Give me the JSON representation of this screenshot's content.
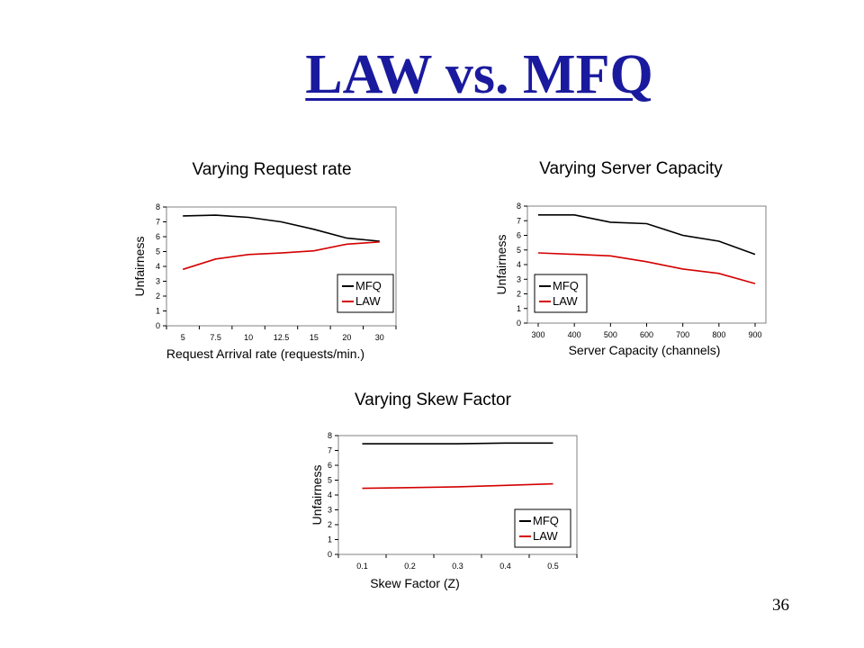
{
  "slide": {
    "title": "LAW vs. MFQ",
    "page_number": "36"
  },
  "colors": {
    "title": "#1a1a9e",
    "MFQ": "#000000",
    "LAW": "#d40000"
  },
  "chart_data": [
    {
      "type": "line",
      "title": "Varying Request rate",
      "xlabel": "Request Arrival rate (requests/min.)",
      "ylabel": "Unfairness",
      "categories": [
        "5",
        "7.5",
        "10",
        "12.5",
        "15",
        "20",
        "30"
      ],
      "ylim": [
        0,
        8
      ],
      "yticks": [
        0,
        1,
        2,
        3,
        4,
        5,
        6,
        7,
        8
      ],
      "legend": "right-bottom",
      "grid": false,
      "series": [
        {
          "name": "MFQ",
          "values": [
            7.4,
            7.45,
            7.3,
            7.0,
            6.5,
            5.9,
            5.7
          ]
        },
        {
          "name": "LAW",
          "values": [
            3.8,
            4.5,
            4.8,
            4.9,
            5.05,
            5.5,
            5.65
          ]
        }
      ]
    },
    {
      "type": "line",
      "title": "Varying Server Capacity",
      "xlabel": "Server Capacity (channels)",
      "ylabel": "Unfairness",
      "categories": [
        "300",
        "400",
        "500",
        "600",
        "700",
        "800",
        "900"
      ],
      "ylim": [
        0,
        8
      ],
      "yticks": [
        0,
        1,
        2,
        3,
        4,
        5,
        6,
        7,
        8
      ],
      "legend": "left-bottom",
      "grid": false,
      "series": [
        {
          "name": "MFQ",
          "values": [
            7.4,
            7.4,
            6.9,
            6.8,
            6.0,
            5.6,
            4.7
          ]
        },
        {
          "name": "LAW",
          "values": [
            4.8,
            4.7,
            4.6,
            4.2,
            3.7,
            3.4,
            2.7
          ]
        }
      ]
    },
    {
      "type": "line",
      "title": "Varying Skew Factor",
      "xlabel": "Skew Factor (Z)",
      "ylabel": "Unfairness",
      "categories": [
        "0.1",
        "0.2",
        "0.3",
        "0.4",
        "0.5"
      ],
      "ylim": [
        0,
        8
      ],
      "yticks": [
        0,
        1,
        2,
        3,
        4,
        5,
        6,
        7,
        8
      ],
      "legend": "right-bottom",
      "grid": false,
      "series": [
        {
          "name": "MFQ",
          "values": [
            7.45,
            7.45,
            7.45,
            7.5,
            7.5
          ]
        },
        {
          "name": "LAW",
          "values": [
            4.45,
            4.5,
            4.55,
            4.65,
            4.75
          ]
        }
      ]
    }
  ]
}
